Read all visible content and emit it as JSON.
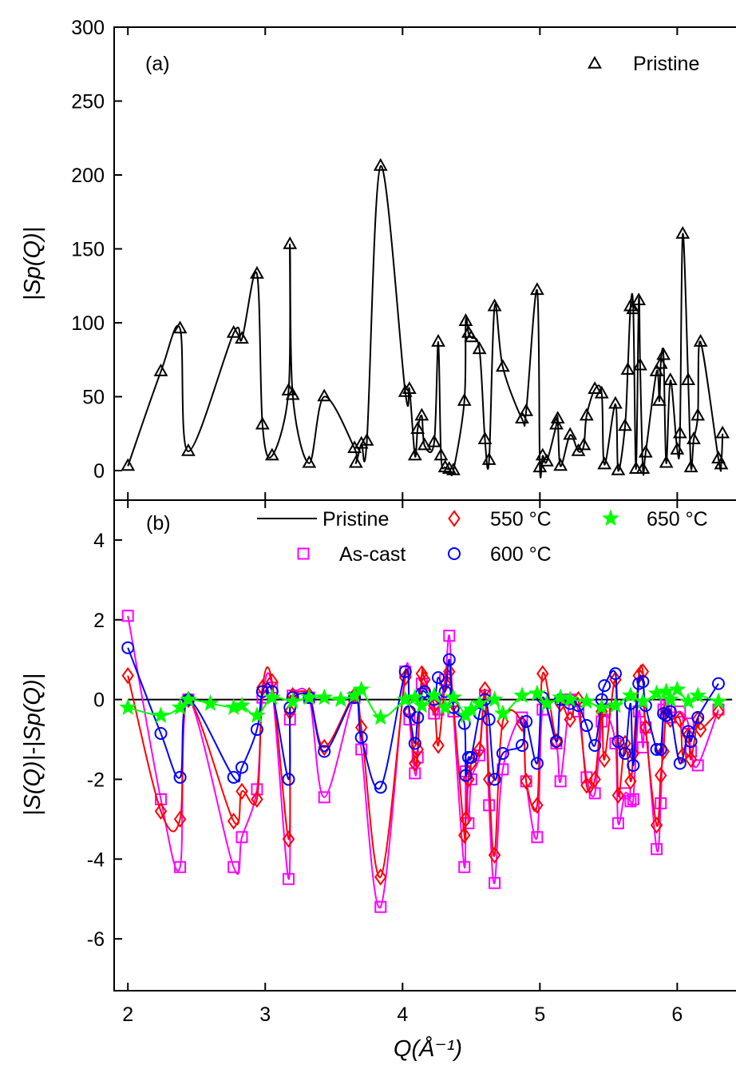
{
  "chart_data": [
    {
      "type": "line",
      "panel": "(a)",
      "xlabel": "Q(Å⁻¹)",
      "ylabel": "|Sp(Q)|",
      "xlim": [
        1.9,
        6.55
      ],
      "ylim": [
        -20,
        300
      ],
      "yticks": [
        0,
        50,
        100,
        150,
        200,
        250,
        300
      ],
      "legend_position": "top-right",
      "series": [
        {
          "name": "Pristine",
          "color": "#000000",
          "marker": "triangle",
          "x": [
            2.0,
            2.24,
            2.38,
            2.44,
            2.77,
            2.83,
            2.94,
            2.98,
            3.05,
            3.17,
            3.18,
            3.2,
            3.32,
            3.43,
            3.65,
            3.66,
            3.7,
            3.74,
            3.84,
            4.02,
            4.05,
            4.09,
            4.11,
            4.14,
            4.16,
            4.23,
            4.26,
            4.28,
            4.31,
            4.34,
            4.37,
            4.45,
            4.46,
            4.48,
            4.5,
            4.56,
            4.6,
            4.63,
            4.67,
            4.73,
            4.87,
            4.9,
            4.98,
            5.0,
            5.02,
            5.05,
            5.12,
            5.13,
            5.15,
            5.22,
            5.28,
            5.32,
            5.34,
            5.4,
            5.45,
            5.47,
            5.55,
            5.57,
            5.62,
            5.64,
            5.66,
            5.68,
            5.7,
            5.72,
            5.73,
            5.75,
            5.77,
            5.85,
            5.87,
            5.88,
            5.9,
            5.92,
            5.95,
            6.0,
            6.02,
            6.04,
            6.08,
            6.1,
            6.12,
            6.15,
            6.17,
            6.3,
            6.32,
            6.33
          ],
          "y": [
            3,
            67,
            96,
            13,
            93,
            89,
            133,
            31,
            10,
            54,
            153,
            51,
            5,
            50,
            15,
            5,
            18,
            20,
            206,
            53,
            55,
            10,
            28,
            37,
            17,
            19,
            87,
            10,
            2,
            1,
            0,
            47,
            101,
            93,
            90,
            82,
            21,
            7,
            111,
            70,
            35,
            40,
            122,
            2,
            10,
            6,
            31,
            35,
            3,
            24,
            13,
            17,
            37,
            55,
            52,
            4,
            45,
            0,
            30,
            68,
            111,
            109,
            1,
            115,
            71,
            1,
            12,
            67,
            47,
            72,
            78,
            5,
            61,
            14,
            25,
            160,
            61,
            2,
            21,
            37,
            87,
            8,
            4,
            25
          ]
        }
      ]
    },
    {
      "type": "line",
      "panel": "(b)",
      "xlabel": "Q(Å⁻¹)",
      "ylabel": "|S(Q)|-|Sp(Q)|",
      "xlim": [
        1.9,
        6.55
      ],
      "ylim": [
        -7.3,
        5
      ],
      "xticks": [
        2,
        3,
        4,
        5,
        6
      ],
      "yticks": [
        -6,
        -4,
        -2,
        0,
        2,
        4
      ],
      "legend_position": "top",
      "series": [
        {
          "name": "Pristine",
          "color": "#000000",
          "marker": "none",
          "x": [
            2.0,
            6.4
          ],
          "y": [
            0,
            0
          ]
        },
        {
          "name": "As-cast",
          "color": "#ff00ff",
          "marker": "square",
          "x": [
            2.0,
            2.24,
            2.38,
            2.44,
            2.77,
            2.83,
            2.94,
            2.98,
            3.05,
            3.17,
            3.18,
            3.2,
            3.32,
            3.43,
            3.65,
            3.7,
            3.84,
            4.02,
            4.05,
            4.09,
            4.11,
            4.14,
            4.23,
            4.26,
            4.31,
            4.34,
            4.37,
            4.45,
            4.46,
            4.48,
            4.5,
            4.56,
            4.6,
            4.63,
            4.67,
            4.73,
            4.87,
            4.9,
            4.98,
            5.02,
            5.12,
            5.15,
            5.22,
            5.28,
            5.34,
            5.4,
            5.45,
            5.47,
            5.55,
            5.57,
            5.62,
            5.66,
            5.68,
            5.72,
            5.75,
            5.77,
            5.85,
            5.88,
            5.9,
            5.92,
            5.95,
            6.02,
            6.08,
            6.1,
            6.15,
            6.3
          ],
          "y": [
            2.1,
            -2.5,
            -4.2,
            0.0,
            -4.2,
            -3.45,
            -2.25,
            0.05,
            0.3,
            -4.5,
            -0.5,
            0.1,
            0.05,
            -2.45,
            0.05,
            -1.25,
            -5.2,
            0.7,
            -0.5,
            -1.85,
            -1.45,
            0.4,
            -0.35,
            -0.25,
            0.5,
            1.6,
            -0.3,
            -4.2,
            -1.8,
            -3.1,
            -2.0,
            -1.4,
            0.1,
            -2.65,
            -4.6,
            -1.75,
            -0.45,
            -2.05,
            -3.45,
            -0.25,
            -1.1,
            -2.05,
            0.0,
            -0.3,
            -1.95,
            -2.35,
            -0.55,
            -0.25,
            -1.1,
            -3.1,
            -2.35,
            -2.55,
            -2.5,
            -0.3,
            -1.2,
            -0.7,
            -3.75,
            -2.6,
            -0.25,
            -0.15,
            -0.45,
            -0.3,
            -0.6,
            -1.3,
            -1.65,
            -0.25
          ]
        },
        {
          "name": "550 °C",
          "color": "#ff0000",
          "marker": "diamond",
          "x": [
            2.0,
            2.24,
            2.38,
            2.44,
            2.77,
            2.83,
            2.94,
            2.98,
            3.05,
            3.17,
            3.18,
            3.2,
            3.32,
            3.43,
            3.65,
            3.7,
            3.84,
            4.02,
            4.05,
            4.09,
            4.11,
            4.14,
            4.16,
            4.23,
            4.26,
            4.31,
            4.34,
            4.37,
            4.45,
            4.46,
            4.48,
            4.5,
            4.56,
            4.6,
            4.63,
            4.67,
            4.73,
            4.87,
            4.9,
            4.98,
            5.02,
            5.12,
            5.15,
            5.22,
            5.28,
            5.34,
            5.4,
            5.45,
            5.47,
            5.55,
            5.57,
            5.62,
            5.66,
            5.68,
            5.72,
            5.75,
            5.77,
            5.85,
            5.88,
            5.9,
            5.92,
            5.95,
            6.02,
            6.04,
            6.08,
            6.1,
            6.15,
            6.17,
            6.3
          ],
          "y": [
            0.6,
            -2.8,
            -3.0,
            0.0,
            -3.05,
            -2.3,
            -2.5,
            0.3,
            0.45,
            -3.5,
            -0.3,
            0.1,
            0.1,
            -1.2,
            0.1,
            -0.7,
            -4.45,
            0.55,
            -0.3,
            -1.6,
            -1.25,
            0.65,
            0.5,
            -0.15,
            -1.15,
            0.4,
            0.7,
            -0.1,
            -3.4,
            -3.0,
            -2.0,
            -1.6,
            -1.25,
            0.25,
            -2.0,
            -3.9,
            -0.55,
            -0.6,
            -2.05,
            -2.65,
            0.65,
            -1.05,
            -0.1,
            -0.5,
            0.0,
            -2.15,
            -2.0,
            -0.3,
            -1.5,
            0.5,
            -2.4,
            -1.1,
            -2.05,
            -1.35,
            0.6,
            0.7,
            -0.7,
            -3.15,
            -1.9,
            -1.3,
            -0.3,
            -0.5,
            -0.5,
            -1.4,
            -0.9,
            -1.5,
            -0.5,
            -0.75,
            -0.3
          ]
        },
        {
          "name": "600 °C",
          "color": "#0000ff",
          "marker": "circle",
          "x": [
            2.0,
            2.24,
            2.38,
            2.44,
            2.77,
            2.83,
            2.94,
            2.98,
            3.05,
            3.17,
            3.18,
            3.2,
            3.32,
            3.43,
            3.65,
            3.7,
            3.84,
            4.02,
            4.05,
            4.09,
            4.11,
            4.14,
            4.16,
            4.23,
            4.26,
            4.31,
            4.34,
            4.37,
            4.45,
            4.46,
            4.48,
            4.5,
            4.56,
            4.6,
            4.63,
            4.67,
            4.73,
            4.87,
            4.9,
            4.98,
            5.02,
            5.12,
            5.15,
            5.22,
            5.28,
            5.34,
            5.4,
            5.45,
            5.47,
            5.55,
            5.57,
            5.62,
            5.66,
            5.68,
            5.72,
            5.75,
            5.77,
            5.85,
            5.88,
            5.9,
            5.92,
            5.95,
            6.02,
            6.08,
            6.1,
            6.15,
            6.3
          ],
          "y": [
            1.3,
            -0.85,
            -1.95,
            0.0,
            -1.95,
            -1.7,
            -0.75,
            0.2,
            0.2,
            -2.0,
            -0.2,
            0.05,
            0.05,
            -1.3,
            0.05,
            -0.95,
            -2.2,
            0.7,
            -0.3,
            -1.1,
            -0.45,
            0.15,
            0.2,
            0.0,
            0.55,
            0.2,
            1.0,
            -0.2,
            -0.6,
            -1.9,
            -1.45,
            -1.45,
            -0.35,
            0.0,
            -0.5,
            -2.0,
            -1.35,
            -1.15,
            -0.55,
            -1.6,
            0.05,
            -1.05,
            0.0,
            -0.1,
            -0.15,
            -0.65,
            -1.15,
            0.0,
            0.35,
            0.65,
            -1.05,
            -1.35,
            -0.1,
            -1.65,
            0.4,
            0.45,
            -0.15,
            -1.25,
            -1.25,
            -0.35,
            -0.4,
            -0.3,
            -1.6,
            -0.8,
            -1.05,
            -0.45,
            0.4
          ]
        },
        {
          "name": "650 °C",
          "color": "#00ff00",
          "marker": "star",
          "x": [
            2.0,
            2.24,
            2.38,
            2.44,
            2.6,
            2.77,
            2.83,
            2.94,
            3.05,
            3.2,
            3.32,
            3.43,
            3.55,
            3.65,
            3.7,
            3.84,
            4.02,
            4.09,
            4.14,
            4.23,
            4.31,
            4.37,
            4.46,
            4.5,
            4.56,
            4.67,
            4.73,
            4.87,
            4.98,
            5.05,
            5.15,
            5.22,
            5.34,
            5.45,
            5.55,
            5.66,
            5.75,
            5.85,
            5.92,
            5.95,
            6.0,
            6.08,
            6.15,
            6.3
          ],
          "y": [
            -0.2,
            -0.4,
            -0.2,
            0.0,
            -0.1,
            -0.2,
            -0.15,
            -0.4,
            0.05,
            -0.05,
            0.05,
            0.05,
            0.0,
            0.1,
            0.25,
            -0.45,
            0.0,
            0.05,
            -0.15,
            0.1,
            -0.2,
            0.05,
            -0.4,
            -0.25,
            -0.1,
            0.0,
            -0.35,
            0.1,
            0.15,
            -0.1,
            0.05,
            0.0,
            -0.05,
            -0.2,
            -0.15,
            0.1,
            -0.05,
            0.15,
            0.2,
            0.0,
            0.25,
            -0.05,
            0.1,
            -0.05
          ]
        }
      ]
    }
  ]
}
